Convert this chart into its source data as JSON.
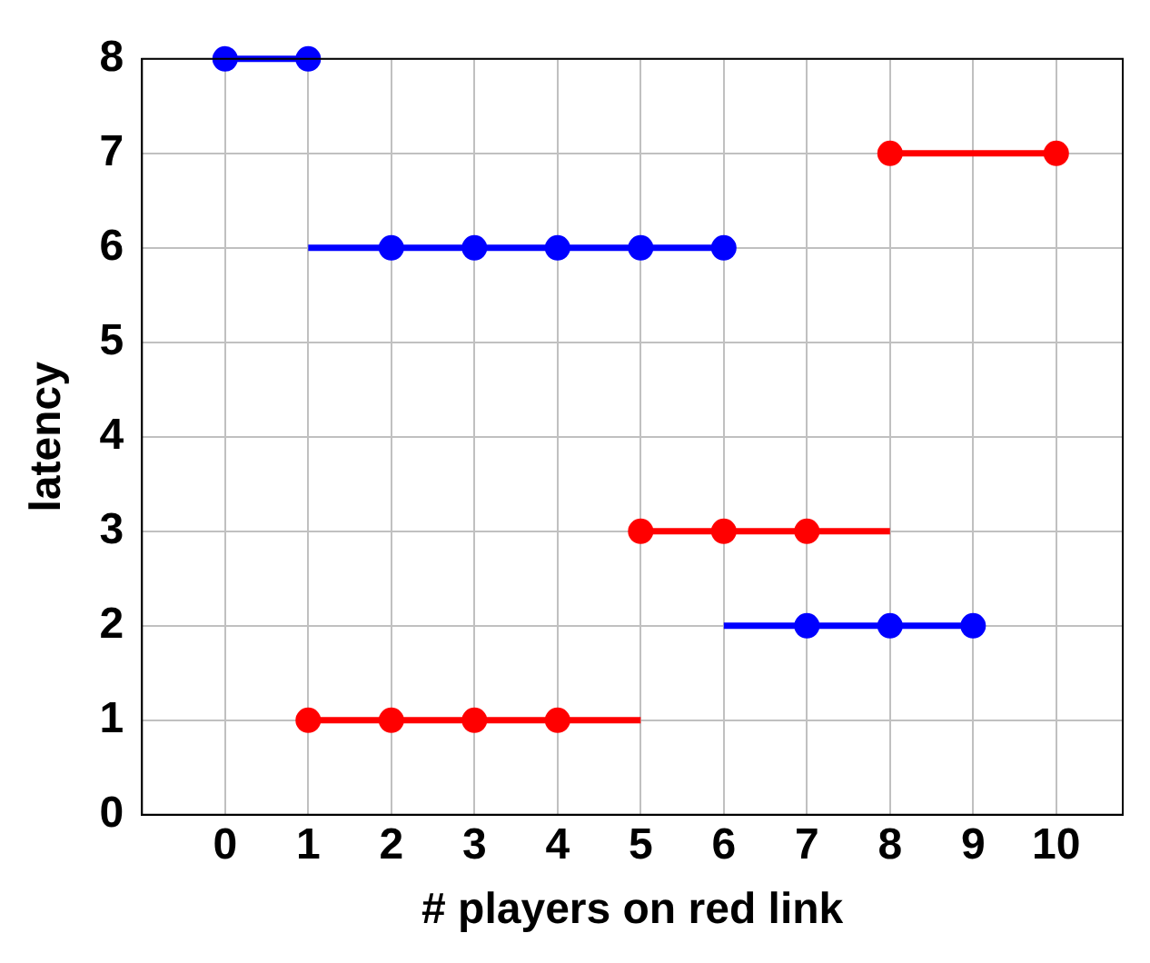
{
  "chart_data": {
    "type": "line",
    "xlabel": "# players on red link",
    "ylabel": "latency",
    "xlim": [
      -1,
      10.8
    ],
    "xticks": [
      0,
      1,
      2,
      3,
      4,
      5,
      6,
      7,
      8,
      9,
      10
    ],
    "ylim": [
      0,
      8
    ],
    "yticks": [
      0,
      1,
      2,
      3,
      4,
      5,
      6,
      7,
      8
    ],
    "grid": true,
    "legend": false,
    "series": [
      {
        "marker": "none",
        "color": "#0000ff",
        "x": [
          0,
          1
        ],
        "values": [
          8,
          8
        ]
      },
      {
        "marker": "none",
        "color": "#0000ff",
        "x": [
          1,
          6
        ],
        "values": [
          6,
          6
        ]
      },
      {
        "marker": "none",
        "color": "#0000ff",
        "x": [
          6,
          9
        ],
        "values": [
          2,
          2
        ]
      },
      {
        "marker": "none",
        "color": "#ff0000",
        "x": [
          1,
          5
        ],
        "values": [
          1,
          1
        ]
      },
      {
        "marker": "none",
        "color": "#ff0000",
        "x": [
          5,
          8
        ],
        "values": [
          3,
          3
        ]
      },
      {
        "marker": "none",
        "color": "#ff0000",
        "x": [
          8,
          10
        ],
        "values": [
          7,
          7
        ]
      },
      {
        "type": "scatter",
        "marker": "circle",
        "color": "#0000ff",
        "x": [
          0,
          1,
          2,
          3,
          4,
          5,
          6,
          7,
          8,
          9
        ],
        "values": [
          8,
          8,
          6,
          6,
          6,
          6,
          6,
          2,
          2,
          2
        ]
      },
      {
        "type": "scatter",
        "marker": "circle",
        "color": "#ff0000",
        "x": [
          1,
          2,
          3,
          4,
          5,
          6,
          7,
          8,
          10
        ],
        "values": [
          1,
          1,
          1,
          1,
          3,
          3,
          3,
          7,
          7
        ]
      }
    ]
  }
}
